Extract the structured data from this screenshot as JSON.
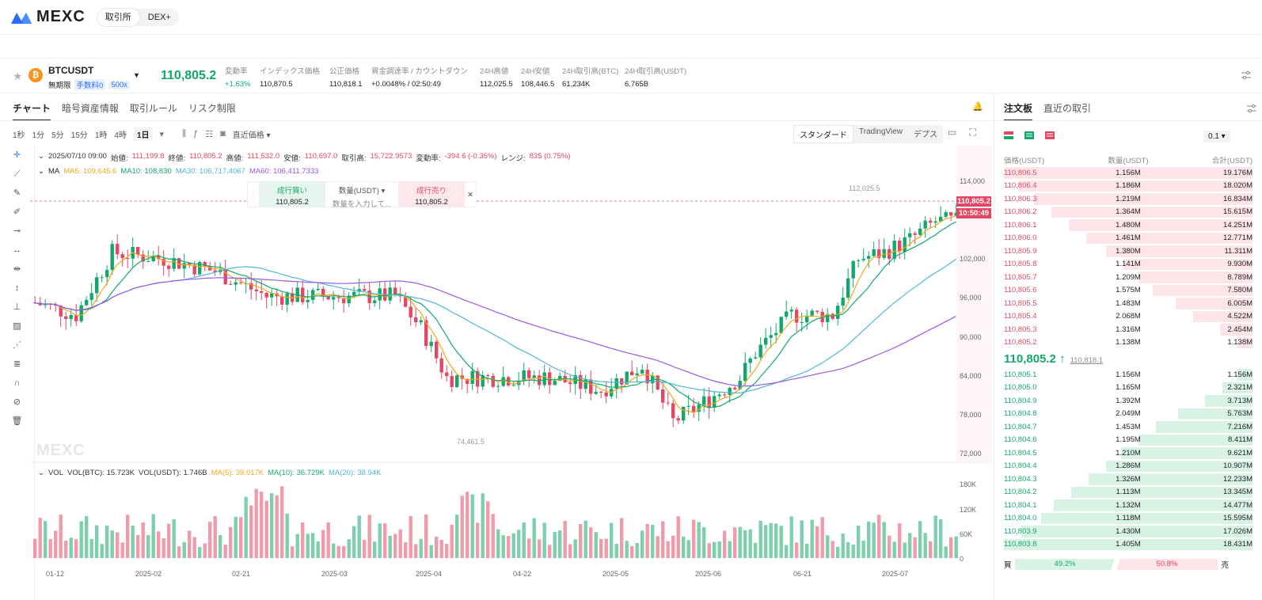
{
  "topbar": {
    "logo": "MEXC",
    "tabs": [
      "取引所",
      "DEX+"
    ]
  },
  "ticker": {
    "symbol": "BTCUSDT",
    "coin_letter": "₿",
    "perp_label": "無期限",
    "fee_label": "手数料0",
    "leverage": "500x",
    "last_price": "110,805.2",
    "stats": [
      {
        "label": "変動率",
        "value": "+1.63%"
      },
      {
        "label": "インデックス価格",
        "value": "110,870.5"
      },
      {
        "label": "公正価格",
        "value": "110,818.1"
      },
      {
        "label": "資金調達率 / カウントダウン",
        "value": "+0.0048% / 02:50:49"
      },
      {
        "label": "24H高値",
        "value": "112,025.5"
      },
      {
        "label": "24H安値",
        "value": "108,446.5"
      },
      {
        "label": "24H取引高(BTC)",
        "value": "61,234K"
      },
      {
        "label": "24H取引高(USDT)",
        "value": "6.765B"
      }
    ]
  },
  "chart_panel": {
    "tabs": [
      "チャート",
      "暗号資産情報",
      "取引ルール",
      "リスク制限"
    ],
    "timeframes": [
      "1秒",
      "1分",
      "5分",
      "15分",
      "1時",
      "4時",
      "1日"
    ],
    "price_type": "直近価格",
    "views": [
      "スタンダード",
      "TradingView",
      "デプス"
    ],
    "ohlc": {
      "date": "2025/07/10 09:00",
      "open_label": "始値:",
      "open": "111,199.8",
      "close_label": "終値:",
      "close": "110,805.2",
      "high_label": "高値:",
      "high": "111,532.0",
      "low_label": "安値:",
      "low": "110,697.0",
      "vol_label": "取引高:",
      "vol": "15,722.9573",
      "chg_label": "変動率:",
      "chg": "-394.6 (-0.35%)",
      "range_label": "レンジ:",
      "range": "835 (0.75%)"
    },
    "ma": {
      "label": "MA",
      "ma5": "MA5: 109,645.6",
      "ma10": "MA10: 108,830",
      "ma30": "MA30: 106,717.4067",
      "ma60": "MA60: 106,411.7333"
    },
    "quick_order": {
      "buy_label": "成行買い",
      "buy_price": "110,805.2",
      "qty_label": "数量(USDT)",
      "qty_placeholder": "数量を入力して...",
      "sell_label": "成行売り",
      "sell_price": "110,805.2"
    },
    "price_axis": [
      "114,000",
      "102,000",
      "96,000",
      "90,000",
      "84,000",
      "78,000",
      "72,000"
    ],
    "high_marker": "112,025.5",
    "low_marker": "74,461.5",
    "current_price_tag": "110,805.2",
    "countdown_tag": "10:50:49",
    "watermark": "MEXC",
    "volume": {
      "label": "VOL",
      "vol_btc": "VOL(BTC): 15.723K",
      "vol_usdt": "VOL(USDT): 1.746B",
      "ma5": "MA(5): 39.017K",
      "ma10": "MA(10): 36.729K",
      "ma20": "MA(20): 38.94K"
    },
    "vol_axis": [
      "180K",
      "120K",
      "60K",
      "0"
    ],
    "date_axis": [
      "01-12",
      "2025-02",
      "02-21",
      "2025-03",
      "2025-04",
      "04-22",
      "2025-05",
      "2025-06",
      "06-21",
      "2025-07"
    ]
  },
  "orderbook": {
    "tabs": [
      "注文板",
      "直近の取引"
    ],
    "precision": "0.1",
    "headers": [
      "価格(USDT)",
      "数量(USDT)",
      "合計(USDT)"
    ],
    "asks": [
      [
        "110,806.5",
        "1.156M",
        "19.176M",
        1.0
      ],
      [
        "110,806.4",
        "1.186M",
        "18.020M",
        0.94
      ],
      [
        "110,806.3",
        "1.219M",
        "16.834M",
        0.88
      ],
      [
        "110,806.2",
        "1.364M",
        "15.615M",
        0.81
      ],
      [
        "110,806.1",
        "1.480M",
        "14.251M",
        0.74
      ],
      [
        "110,806.0",
        "1.461M",
        "12.771M",
        0.67
      ],
      [
        "110,805.9",
        "1.380M",
        "11.311M",
        0.59
      ],
      [
        "110,805.8",
        "1.141M",
        "9.930M",
        0.52
      ],
      [
        "110,805.7",
        "1.209M",
        "8.789M",
        0.46
      ],
      [
        "110,805.6",
        "1.575M",
        "7.580M",
        0.4
      ],
      [
        "110,805.5",
        "1.483M",
        "6.005M",
        0.31
      ],
      [
        "110,805.4",
        "2.068M",
        "4.522M",
        0.24
      ],
      [
        "110,805.3",
        "1.316M",
        "2.454M",
        0.13
      ],
      [
        "110,805.2",
        "1.138M",
        "1.138M",
        0.06
      ]
    ],
    "mid_price": "110,805.2 ↑",
    "mid_sub": "110,818.1",
    "bids": [
      [
        "110,805.1",
        "1.156M",
        "1.156M",
        0.06
      ],
      [
        "110,805.0",
        "1.165M",
        "2.321M",
        0.12
      ],
      [
        "110,804.9",
        "1.392M",
        "3.713M",
        0.19
      ],
      [
        "110,804.8",
        "2.049M",
        "5.763M",
        0.3
      ],
      [
        "110,804.7",
        "1.453M",
        "7.216M",
        0.39
      ],
      [
        "110,804.6",
        "1.195M",
        "8.411M",
        0.46
      ],
      [
        "110,804.5",
        "1.210M",
        "9.621M",
        0.53
      ],
      [
        "110,804.4",
        "1.286M",
        "10.907M",
        0.59
      ],
      [
        "110,804.3",
        "1.326M",
        "12.233M",
        0.66
      ],
      [
        "110,804.2",
        "1.113M",
        "13.345M",
        0.73
      ],
      [
        "110,804.1",
        "1.132M",
        "14.477M",
        0.8
      ],
      [
        "110,804.0",
        "1.118M",
        "15.595M",
        0.85
      ],
      [
        "110,803.9",
        "1.430M",
        "17.026M",
        0.93
      ],
      [
        "110,803.8",
        "1.405M",
        "18.431M",
        1.0
      ]
    ],
    "buy_ratio_label": "買",
    "buy_ratio": "49.2%",
    "sell_ratio": "50.8%",
    "sell_ratio_label": "売"
  },
  "colors": {
    "up": "#13a86b",
    "down": "#e24863",
    "ma5": "#f0a81c",
    "ma10": "#13a86b",
    "ma30": "#4fb8d6",
    "ma60": "#9b59e6"
  }
}
